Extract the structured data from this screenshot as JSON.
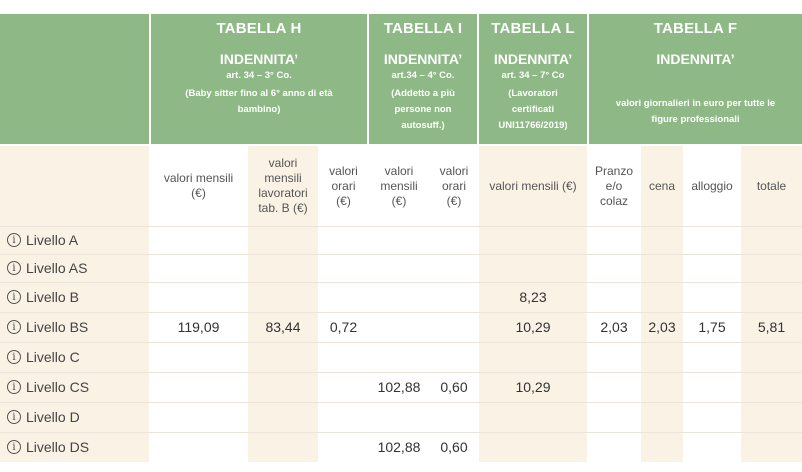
{
  "tables": {
    "h": {
      "title": "TABELLA H",
      "indennita": "INDENNITA’",
      "article": "art. 34 – 3° Co.",
      "desc_line1": "(Baby sitter fino al 6° anno di età",
      "desc_line2": "bambino)"
    },
    "i": {
      "title": "TABELLA I",
      "indennita": "INDENNITA’",
      "article": "art.34 – 4° Co.",
      "desc_line1": "(Addetto a più",
      "desc_line2": "persone non",
      "desc_line3": "autosuff.)"
    },
    "l": {
      "title": "TABELLA L",
      "indennita": "INDENNITA’",
      "article": "art. 34 – 7° Co",
      "desc_line1": "(Lavoratori",
      "desc_line2": "certificati",
      "desc_line3": "UNI11766/2019)"
    },
    "f": {
      "title": "TABELLA F",
      "indennita": "INDENNITA’",
      "desc_line1": "valori giornalieri in euro per tutte le",
      "desc_line2": "figure professionali"
    }
  },
  "columns": {
    "h_mensili": [
      "valori mensili",
      "(€)"
    ],
    "h_mensili_tab_b": [
      "valori",
      "mensili",
      "lavoratori",
      "tab. B (€)"
    ],
    "h_orari": [
      "valori",
      "orari",
      "(€)"
    ],
    "i_mensili": [
      "valori",
      "mensili",
      "(€)"
    ],
    "i_orari": [
      "valori",
      "orari",
      "(€)"
    ],
    "l_mensili": [
      "valori mensili (€)"
    ],
    "f_pranzo": [
      "Pranzo",
      "e/o",
      "colaz"
    ],
    "f_cena": [
      "cena"
    ],
    "f_alloggio": [
      "alloggio"
    ],
    "f_totale": [
      "totale"
    ]
  },
  "rows": [
    {
      "level": "Livello A",
      "h_mensili": "",
      "h_tab_b": "",
      "h_orari": "",
      "i_mensili": "",
      "i_orari": "",
      "l_mensili": "",
      "f_pranzo": "",
      "f_cena": "",
      "f_alloggio": "",
      "f_totale": ""
    },
    {
      "level": "Livello AS",
      "h_mensili": "",
      "h_tab_b": "",
      "h_orari": "",
      "i_mensili": "",
      "i_orari": "",
      "l_mensili": "",
      "f_pranzo": "",
      "f_cena": "",
      "f_alloggio": "",
      "f_totale": ""
    },
    {
      "level": "Livello B",
      "h_mensili": "",
      "h_tab_b": "",
      "h_orari": "",
      "i_mensili": "",
      "i_orari": "",
      "l_mensili": "8,23",
      "f_pranzo": "",
      "f_cena": "",
      "f_alloggio": "",
      "f_totale": ""
    },
    {
      "level": "Livello BS",
      "h_mensili": "119,09",
      "h_tab_b": "83,44",
      "h_orari": "0,72",
      "i_mensili": "",
      "i_orari": "",
      "l_mensili": "10,29",
      "f_pranzo": "2,03",
      "f_cena": "2,03",
      "f_alloggio": "1,75",
      "f_totale": "5,81"
    },
    {
      "level": "Livello C",
      "h_mensili": "",
      "h_tab_b": "",
      "h_orari": "",
      "i_mensili": "",
      "i_orari": "",
      "l_mensili": "",
      "f_pranzo": "",
      "f_cena": "",
      "f_alloggio": "",
      "f_totale": ""
    },
    {
      "level": "Livello CS",
      "h_mensili": "",
      "h_tab_b": "",
      "h_orari": "",
      "i_mensili": "102,88",
      "i_orari": "0,60",
      "l_mensili": "10,29",
      "f_pranzo": "",
      "f_cena": "",
      "f_alloggio": "",
      "f_totale": ""
    },
    {
      "level": "Livello D",
      "h_mensili": "",
      "h_tab_b": "",
      "h_orari": "",
      "i_mensili": "",
      "i_orari": "",
      "l_mensili": "",
      "f_pranzo": "",
      "f_cena": "",
      "f_alloggio": "",
      "f_totale": ""
    },
    {
      "level": "Livello DS",
      "h_mensili": "",
      "h_tab_b": "",
      "h_orari": "",
      "i_mensili": "102,88",
      "i_orari": "0,60",
      "l_mensili": "",
      "f_pranzo": "",
      "f_cena": "",
      "f_alloggio": "",
      "f_totale": ""
    }
  ],
  "icons": {
    "level_info": "info-circle-icon"
  },
  "colors": {
    "header_green": "#8eb886",
    "beige_column": "#fbf2e6",
    "white": "#ffffff"
  }
}
